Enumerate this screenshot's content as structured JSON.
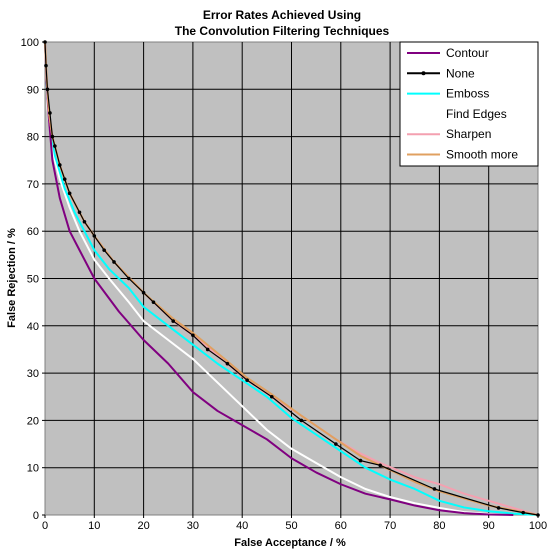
{
  "chart_data": {
    "type": "line",
    "title": [
      "Error Rates Achieved Using",
      "The Convolution Filtering Techniques"
    ],
    "xlabel": "False Acceptance / %",
    "ylabel": "False Rejection / %",
    "xlim": [
      0,
      100
    ],
    "ylim": [
      0,
      100
    ],
    "xticks": [
      0,
      10,
      20,
      30,
      40,
      50,
      60,
      70,
      80,
      90,
      100
    ],
    "yticks": [
      0,
      10,
      20,
      30,
      40,
      50,
      60,
      70,
      80,
      90,
      100
    ],
    "grid": true,
    "background": "#c0c0c0",
    "legend_position": "top-right",
    "series": [
      {
        "name": "Contour",
        "color": "#800080",
        "markers": false,
        "points": [
          [
            0,
            100
          ],
          [
            0.3,
            92
          ],
          [
            0.7,
            85
          ],
          [
            1.5,
            75
          ],
          [
            3,
            67
          ],
          [
            5,
            60
          ],
          [
            7,
            56
          ],
          [
            10,
            50
          ],
          [
            15,
            43
          ],
          [
            20,
            37
          ],
          [
            25,
            32
          ],
          [
            30,
            26
          ],
          [
            35,
            22
          ],
          [
            40,
            19
          ],
          [
            45,
            16
          ],
          [
            50,
            12
          ],
          [
            55,
            9
          ],
          [
            60,
            6.5
          ],
          [
            65,
            4.5
          ],
          [
            70,
            3.3
          ],
          [
            75,
            2
          ],
          [
            80,
            1
          ],
          [
            85,
            0.4
          ],
          [
            90,
            0.1
          ],
          [
            95,
            0
          ]
        ]
      },
      {
        "name": "None",
        "color": "#000000",
        "markers": true,
        "points": [
          [
            0,
            100
          ],
          [
            0.2,
            95
          ],
          [
            0.5,
            90
          ],
          [
            1,
            85
          ],
          [
            1.5,
            80
          ],
          [
            2,
            78
          ],
          [
            3,
            74
          ],
          [
            4,
            71
          ],
          [
            5,
            68
          ],
          [
            7,
            64
          ],
          [
            8,
            62
          ],
          [
            10,
            59
          ],
          [
            12,
            56
          ],
          [
            14,
            53.5
          ],
          [
            17,
            50
          ],
          [
            20,
            47
          ],
          [
            22,
            45
          ],
          [
            26,
            41
          ],
          [
            30,
            38
          ],
          [
            33,
            35
          ],
          [
            37,
            32
          ],
          [
            41,
            28.5
          ],
          [
            46,
            25
          ],
          [
            52,
            20
          ],
          [
            59,
            15
          ],
          [
            64,
            11.5
          ],
          [
            68,
            10.5
          ],
          [
            79,
            5.5
          ],
          [
            92,
            1.5
          ],
          [
            97,
            0.5
          ],
          [
            100,
            0
          ]
        ]
      },
      {
        "name": "Emboss",
        "color": "#00ffff",
        "markers": false,
        "points": [
          [
            0,
            100
          ],
          [
            0.4,
            90
          ],
          [
            1,
            83
          ],
          [
            2,
            76
          ],
          [
            4,
            69
          ],
          [
            6,
            64
          ],
          [
            8,
            60
          ],
          [
            10,
            56
          ],
          [
            13,
            52
          ],
          [
            17,
            48
          ],
          [
            20,
            44
          ],
          [
            25,
            40
          ],
          [
            30,
            36
          ],
          [
            35,
            32
          ],
          [
            40,
            28.5
          ],
          [
            45,
            25
          ],
          [
            50,
            20.5
          ],
          [
            55,
            17
          ],
          [
            60,
            13.5
          ],
          [
            65,
            10
          ],
          [
            70,
            7.5
          ],
          [
            75,
            5.5
          ],
          [
            80,
            3
          ],
          [
            85,
            1.6
          ],
          [
            90,
            0.8
          ],
          [
            95,
            0.3
          ],
          [
            100,
            0
          ]
        ]
      },
      {
        "name": "Find Edges",
        "color": "#ffffff",
        "markers": false,
        "points": [
          [
            0,
            100
          ],
          [
            0.5,
            86
          ],
          [
            1.5,
            77
          ],
          [
            3,
            71
          ],
          [
            5,
            65
          ],
          [
            7,
            60
          ],
          [
            10,
            54
          ],
          [
            13,
            50
          ],
          [
            17,
            45
          ],
          [
            20,
            41
          ],
          [
            25,
            37
          ],
          [
            30,
            33
          ],
          [
            35,
            28
          ],
          [
            40,
            23
          ],
          [
            45,
            18
          ],
          [
            50,
            14
          ],
          [
            55,
            11
          ],
          [
            60,
            8
          ],
          [
            65,
            5.5
          ],
          [
            70,
            3.8
          ],
          [
            75,
            2.5
          ],
          [
            80,
            1.5
          ],
          [
            85,
            0.6
          ],
          [
            90,
            0.2
          ],
          [
            95,
            0
          ]
        ]
      },
      {
        "name": "Sharpen",
        "color": "#f4a0b0",
        "markers": false,
        "points": [
          [
            0,
            100
          ],
          [
            0.3,
            93
          ],
          [
            0.8,
            85
          ],
          [
            1.5,
            80
          ],
          [
            3,
            74
          ],
          [
            5,
            68
          ],
          [
            8,
            62
          ],
          [
            10,
            59
          ],
          [
            14,
            53.5
          ],
          [
            20,
            47
          ],
          [
            26,
            41
          ],
          [
            30,
            38
          ],
          [
            37,
            32
          ],
          [
            41,
            28.5
          ],
          [
            46,
            25
          ],
          [
            52,
            21
          ],
          [
            59,
            16
          ],
          [
            64,
            13
          ],
          [
            68,
            11
          ],
          [
            75,
            8
          ],
          [
            80,
            6.5
          ],
          [
            85,
            4.5
          ],
          [
            90,
            3
          ],
          [
            95,
            1.5
          ],
          [
            100,
            0
          ]
        ]
      },
      {
        "name": "Smooth more",
        "color": "#e0a060",
        "markers": false,
        "points": [
          [
            0,
            100
          ],
          [
            0.3,
            93
          ],
          [
            0.8,
            85
          ],
          [
            1.5,
            80
          ],
          [
            3,
            74
          ],
          [
            5,
            68
          ],
          [
            8,
            62
          ],
          [
            10,
            59
          ],
          [
            14,
            53.5
          ],
          [
            20,
            47
          ],
          [
            26,
            41.5
          ],
          [
            30,
            38.5
          ],
          [
            37,
            32.5
          ],
          [
            41,
            29
          ],
          [
            46,
            25.5
          ],
          [
            52,
            21
          ],
          [
            59,
            16
          ],
          [
            64,
            12.5
          ],
          [
            68,
            10.5
          ],
          [
            75,
            7
          ],
          [
            80,
            5
          ],
          [
            85,
            3.5
          ],
          [
            90,
            2
          ],
          [
            95,
            1
          ],
          [
            100,
            0
          ]
        ]
      }
    ]
  }
}
